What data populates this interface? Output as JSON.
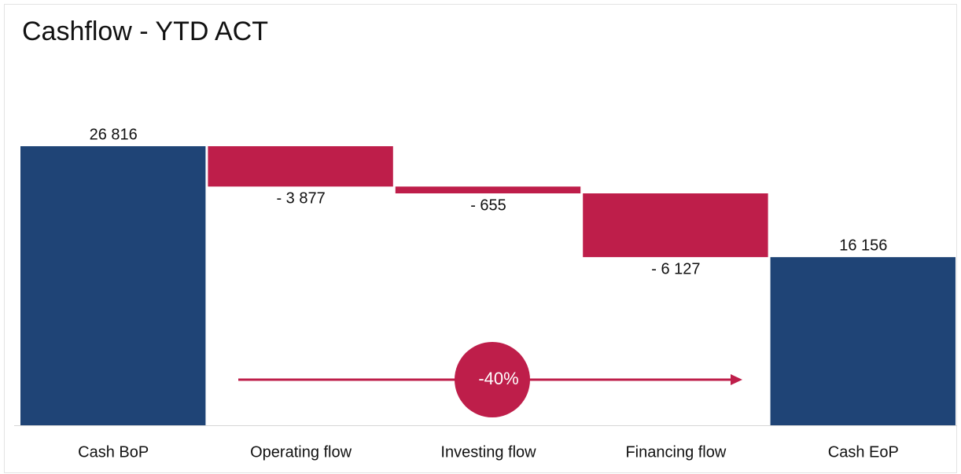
{
  "chart_data": {
    "type": "waterfall",
    "title": "Cashflow - YTD ACT",
    "categories": [
      "Cash BoP",
      "Operating flow",
      "Investing flow",
      "Financing flow",
      "Cash EoP"
    ],
    "values": [
      26816,
      -3877,
      -655,
      -6127,
      16156
    ],
    "value_labels": [
      "26 816",
      "- 3 877",
      "- 655",
      "- 6 127",
      "16 156"
    ],
    "measures": [
      "absolute",
      "relative",
      "relative",
      "relative",
      "total"
    ],
    "total_color": "#1f4476",
    "decrease_color": "#be1e4a",
    "annotation": "-40%"
  }
}
